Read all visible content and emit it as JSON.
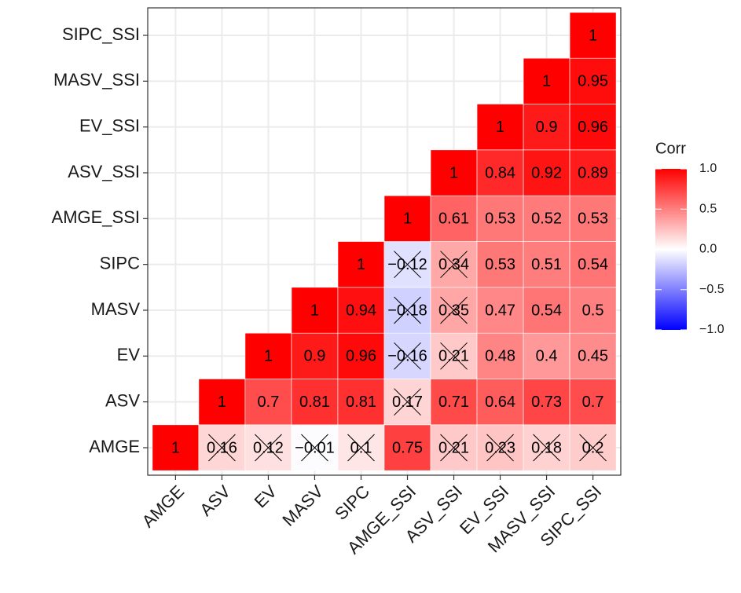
{
  "chart_data": {
    "type": "heatmap",
    "x_categories": [
      "AMGE",
      "ASV",
      "EV",
      "MASV",
      "SIPC",
      "AMGE_SSI",
      "ASV_SSI",
      "EV_SSI",
      "MASV_SSI",
      "SIPC_SSI"
    ],
    "y_categories": [
      "AMGE",
      "ASV",
      "EV",
      "MASV",
      "SIPC",
      "AMGE_SSI",
      "ASV_SSI",
      "EV_SSI",
      "MASV_SSI",
      "SIPC_SSI"
    ],
    "values": [
      [
        1,
        0.16,
        0.12,
        -0.01,
        0.1,
        0.75,
        0.21,
        0.23,
        0.18,
        0.2
      ],
      [
        null,
        1,
        0.7,
        0.81,
        0.81,
        0.17,
        0.71,
        0.64,
        0.73,
        0.7
      ],
      [
        null,
        null,
        1,
        0.9,
        0.96,
        -0.16,
        0.21,
        0.48,
        0.4,
        0.45
      ],
      [
        null,
        null,
        null,
        1,
        0.94,
        -0.18,
        0.35,
        0.47,
        0.54,
        0.5
      ],
      [
        null,
        null,
        null,
        null,
        1,
        -0.12,
        0.34,
        0.53,
        0.51,
        0.54
      ],
      [
        null,
        null,
        null,
        null,
        null,
        1,
        0.61,
        0.53,
        0.52,
        0.53
      ],
      [
        null,
        null,
        null,
        null,
        null,
        null,
        1,
        0.84,
        0.92,
        0.89
      ],
      [
        null,
        null,
        null,
        null,
        null,
        null,
        null,
        1,
        0.9,
        0.96
      ],
      [
        null,
        null,
        null,
        null,
        null,
        null,
        null,
        null,
        1,
        0.95
      ],
      [
        null,
        null,
        null,
        null,
        null,
        null,
        null,
        null,
        null,
        1
      ]
    ],
    "value_labels": [
      [
        "1",
        "0.16",
        "0.12",
        "−0.01",
        "0.1",
        "0.75",
        "0.21",
        "0.23",
        "0.18",
        "0.2"
      ],
      [
        null,
        "1",
        "0.7",
        "0.81",
        "0.81",
        "0.17",
        "0.71",
        "0.64",
        "0.73",
        "0.7"
      ],
      [
        null,
        null,
        "1",
        "0.9",
        "0.96",
        "−0.16",
        "0.21",
        "0.48",
        "0.4",
        "0.45"
      ],
      [
        null,
        null,
        null,
        "1",
        "0.94",
        "−0.18",
        "0.35",
        "0.47",
        "0.54",
        "0.5"
      ],
      [
        null,
        null,
        null,
        null,
        "1",
        "−0.12",
        "0.34",
        "0.53",
        "0.51",
        "0.54"
      ],
      [
        null,
        null,
        null,
        null,
        null,
        "1",
        "0.61",
        "0.53",
        "0.52",
        "0.53"
      ],
      [
        null,
        null,
        null,
        null,
        null,
        null,
        "1",
        "0.84",
        "0.92",
        "0.89"
      ],
      [
        null,
        null,
        null,
        null,
        null,
        null,
        null,
        "1",
        "0.9",
        "0.96"
      ],
      [
        null,
        null,
        null,
        null,
        null,
        null,
        null,
        null,
        "1",
        "0.95"
      ],
      [
        null,
        null,
        null,
        null,
        null,
        null,
        null,
        null,
        null,
        "1"
      ]
    ],
    "insignificant": [
      [
        false,
        true,
        true,
        true,
        true,
        false,
        true,
        true,
        true,
        true
      ],
      [
        null,
        false,
        false,
        false,
        false,
        true,
        false,
        false,
        false,
        false
      ],
      [
        null,
        null,
        false,
        false,
        false,
        true,
        true,
        false,
        false,
        false
      ],
      [
        null,
        null,
        null,
        false,
        false,
        true,
        true,
        false,
        false,
        false
      ],
      [
        null,
        null,
        null,
        null,
        false,
        true,
        true,
        false,
        false,
        false
      ],
      [
        null,
        null,
        null,
        null,
        null,
        false,
        false,
        false,
        false,
        false
      ],
      [
        null,
        null,
        null,
        null,
        null,
        null,
        false,
        false,
        false,
        false
      ],
      [
        null,
        null,
        null,
        null,
        null,
        null,
        null,
        false,
        false,
        false
      ],
      [
        null,
        null,
        null,
        null,
        null,
        null,
        null,
        null,
        false,
        false
      ],
      [
        null,
        null,
        null,
        null,
        null,
        null,
        null,
        null,
        null,
        false
      ]
    ],
    "legend_title": "Corr",
    "color_scale": [
      "#0000FF",
      "#FFFFFF",
      "#FF0000"
    ],
    "clim": [
      -1,
      1
    ],
    "cticks": [
      {
        "value": -1,
        "label": "−1.0"
      },
      {
        "value": -0.5,
        "label": "−0.5"
      },
      {
        "value": 0,
        "label": "0.0"
      },
      0.5,
      {
        "value": 1,
        "label": "1.0"
      }
    ],
    "grid": true
  }
}
